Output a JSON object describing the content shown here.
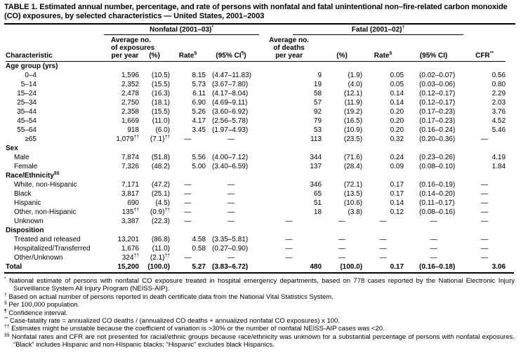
{
  "title": "TABLE 1. Estimated annual number, percentage, and rate of persons with nonfatal and fatal unintentional non–fire-related carbon monoxide (CO) exposures, by selected characteristics — United States, 2001–2003",
  "header": {
    "characteristic": "Characteristic",
    "groups": [
      {
        "label": "Nonfatal (2001–03)^{*}"
      },
      {
        "label": "Fatal (2001–02)^{†}"
      }
    ],
    "columns": [
      "Average no.\nof exposures\nper year",
      "(%)",
      "Rate^{§}",
      "(95% CI^{¶})",
      "Average no.\nof deaths\nper year",
      "(%)",
      "Rate^{§}",
      "(95% CI)",
      "CFR^{**}"
    ]
  },
  "table": {
    "sections": [
      {
        "label": "Age group (yrs)",
        "rows": [
          {
            "label": "0–4",
            "cells": [
              "1,596",
              "(10.5)",
              "8.15",
              "(4.47–11.83)",
              "9",
              "(1.9)",
              "0.05",
              "(0.02–0.07)",
              "0.56"
            ]
          },
          {
            "label": "5–14",
            "cells": [
              "2,352",
              "(15.5)",
              "5.73",
              "(3.67–7.80)",
              "19",
              "(4.0)",
              "0.05",
              "(0.03–0.06)",
              "0.80"
            ]
          },
          {
            "label": "15–24",
            "cells": [
              "2,478",
              "(16.3)",
              "6.11",
              "(4.17–8.04)",
              "58",
              "(12.1)",
              "0.14",
              "(0.12–0.17)",
              "2.29"
            ]
          },
          {
            "label": "25–34",
            "cells": [
              "2,750",
              "(18.1)",
              "6.90",
              "(4.69–9.11)",
              "57",
              "(11.9)",
              "0.14",
              "(0.12–0.17)",
              "2.03"
            ]
          },
          {
            "label": "35–44",
            "cells": [
              "2,358",
              "(15.5)",
              "5.26",
              "(3.60–6.92)",
              "92",
              "(19.2)",
              "0.20",
              "(0.17–0.23)",
              "3.76"
            ]
          },
          {
            "label": "45–54",
            "cells": [
              "1,669",
              "(11.0)",
              "4.17",
              "(2.56–5.78)",
              "79",
              "(16.5)",
              "0.20",
              "(0.17–0.23)",
              "4.52"
            ]
          },
          {
            "label": "55–64",
            "cells": [
              "918",
              "(6.0)",
              "3.45",
              "(1.97–4.93)",
              "53",
              "(10.9)",
              "0.20",
              "(0.16–0.24)",
              "5.46"
            ]
          },
          {
            "label": "≥65",
            "cells": [
              "1,079^{††}",
              "(7.1)^{††}",
              "—",
              "—",
              "113",
              "(23.5)",
              "0.32",
              "(0.20–0.36)",
              "—"
            ]
          }
        ]
      },
      {
        "label": "Sex",
        "rows": [
          {
            "label": "Male",
            "cells": [
              "7,874",
              "(51.8)",
              "5.56",
              "(4.00–7.12)",
              "344",
              "(71.6)",
              "0.24",
              "(0.23–0.26)",
              "4.19"
            ]
          },
          {
            "label": "Female",
            "cells": [
              "7,326",
              "(48.2)",
              "5.00",
              "(3.40–6.59)",
              "137",
              "(28.4)",
              "0.09",
              "(0.08–0.10)",
              "1.84"
            ]
          }
        ]
      },
      {
        "label": "Race/Ethnicity^{§§}",
        "rows": [
          {
            "label": "White, non-Hispanic",
            "cells": [
              "7,171",
              "(47.2)",
              "—",
              "—",
              "346",
              "(72.1)",
              "0.17",
              "(0.16–0.19)",
              "—"
            ]
          },
          {
            "label": "Black",
            "cells": [
              "3,817",
              "(25.1)",
              "—",
              "—",
              "65",
              "(13.5)",
              "0.17",
              "(0.14–0.20)",
              "—"
            ]
          },
          {
            "label": "Hispanic",
            "cells": [
              "690",
              "(4.5)",
              "—",
              "—",
              "51",
              "(10.6)",
              "0.14",
              "(0.11–0.17)",
              "—"
            ]
          },
          {
            "label": "Other, non-Hispanic",
            "cells": [
              "135^{††}",
              "(0.9)^{††}",
              "—",
              "—",
              "18",
              "(3.8)",
              "0.12",
              "(0.08–0.16)",
              "—"
            ]
          },
          {
            "label": "Unknown",
            "cells": [
              "3,387",
              "(22.3)",
              "—",
              "—",
              "—",
              "—",
              "—",
              "—",
              "—"
            ]
          }
        ]
      },
      {
        "label": "Disposition",
        "rows": [
          {
            "label": "Treated and released",
            "cells": [
              "13,201",
              "(86.8)",
              "4.58",
              "(3.35–5.81)",
              "—",
              "—",
              "—",
              "—",
              "—"
            ]
          },
          {
            "label": "Hospitalized/Transferred",
            "cells": [
              "1,676",
              "(11.0)",
              "0.58",
              "(0.27–0.90)",
              "—",
              "—",
              "—",
              "—",
              "—"
            ]
          },
          {
            "label": "Other/Unknown",
            "cells": [
              "324^{††}",
              "(2.1)^{††}",
              "—",
              "—",
              "—",
              "—",
              "—",
              "—",
              "—"
            ]
          }
        ]
      }
    ],
    "total": {
      "label": "Total",
      "cells": [
        "15,200",
        "(100.0)",
        "5.27",
        "(3.83–6.72)",
        "480",
        "(100.0)",
        "0.17",
        "(0.16–0.18)",
        "3.06"
      ]
    }
  },
  "footnotes": [
    {
      "marker": "*",
      "text": "National estimate of persons with nonfatal CO exposure treated in hospital emergency departments, based on 778 cases reported by the National Electronic Injury Surveillance System All Injury Program (NEISS-AIP)."
    },
    {
      "marker": "†",
      "text": "Based on actual number of persons reported in death certificate data from the National Vital Statistics System."
    },
    {
      "marker": "§",
      "text": "Per 100,000 population."
    },
    {
      "marker": "¶",
      "text": "Confidence interval."
    },
    {
      "marker": "**",
      "text": "Case-fatality rate = annualized CO deaths / (annualized CO deaths + annualized nonfatal CO exposures) x 100."
    },
    {
      "marker": "††",
      "text": "Estimates might be unstable because the coefficient of variation is >30% or the number of nonfatal NEISS-AIP cases was <20."
    },
    {
      "marker": "§§",
      "text": "Nonfatal rates and CFR are not presented for racial/ethnic groups because race/ethnicity was unknown for a substantial percentage of persons with nonfatal exposures. “Black” includes Hispanic and non-Hispanic blacks; “Hispanic” excludes black Hispanics."
    }
  ]
}
